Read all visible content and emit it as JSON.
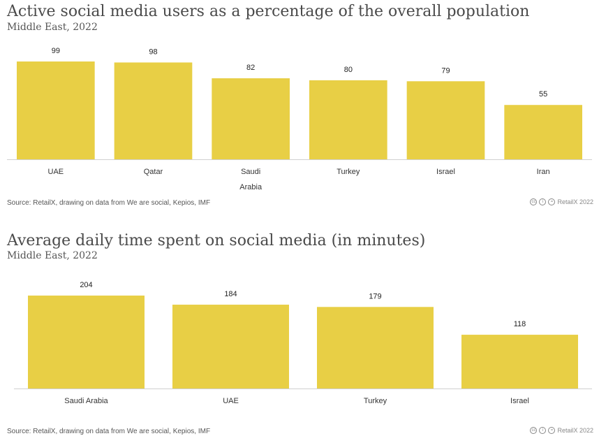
{
  "chart_data": [
    {
      "type": "bar",
      "title": "Active social media users as a percentage of the overall population",
      "subtitle": "Middle East, 2022",
      "categories": [
        "UAE",
        "Qatar",
        "Saudi Arabia",
        "Turkey",
        "Israel",
        "Iran"
      ],
      "values": [
        99,
        98,
        82,
        80,
        79,
        55
      ],
      "ylim": [
        0,
        99
      ],
      "xlabel": "",
      "ylabel": "",
      "source": "Source: RetailX, drawing on data from We are social, Kepios, IMF",
      "credit": "RetailX 2022",
      "bar_color": "#e8cf45"
    },
    {
      "type": "bar",
      "title": "Average daily time spent on social media (in minutes)",
      "subtitle": "Middle East, 2022",
      "categories": [
        "Saudi Arabia",
        "UAE",
        "Turkey",
        "Israel"
      ],
      "values": [
        204,
        184,
        179,
        118
      ],
      "ylim": [
        0,
        204
      ],
      "xlabel": "",
      "ylabel": "",
      "source": "Source: RetailX, drawing on data from We are social, Kepios, IMF",
      "credit": "RetailX 2022",
      "bar_color": "#e8cf45"
    }
  ]
}
